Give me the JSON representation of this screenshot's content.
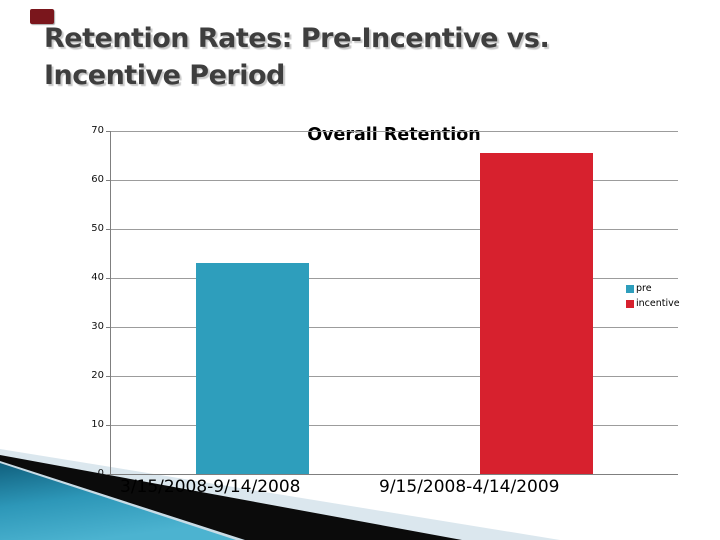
{
  "slide": {
    "title": "Retention Rates: Pre-Incentive vs. Incentive Period",
    "accent_color": "#7a161c"
  },
  "chart_data": {
    "type": "bar",
    "title": "Overall Retention",
    "categories": [
      "3/15/2008-9/14/2008",
      "9/15/2008-4/14/2009"
    ],
    "series": [
      {
        "name": "pre",
        "color": "#2E9EBC",
        "values": [
          43,
          null
        ]
      },
      {
        "name": "incentive",
        "color": "#D7212E",
        "values": [
          null,
          65.5
        ]
      }
    ],
    "ylim": [
      0,
      70
    ],
    "yticks": [
      70,
      60,
      50,
      40,
      30,
      20,
      10,
      0
    ],
    "xlabel": "",
    "ylabel": "",
    "grid": true,
    "legend_position": "right",
    "legend": [
      "pre",
      "incentive"
    ]
  },
  "decoration": {
    "pale": "#dbe7ee",
    "pale_sliver": "#c9dce6",
    "black": "#0b0b0b",
    "teal_dark": "#10607e",
    "teal_mid": "#2d97b8",
    "teal_light": "#4cb3d0"
  }
}
